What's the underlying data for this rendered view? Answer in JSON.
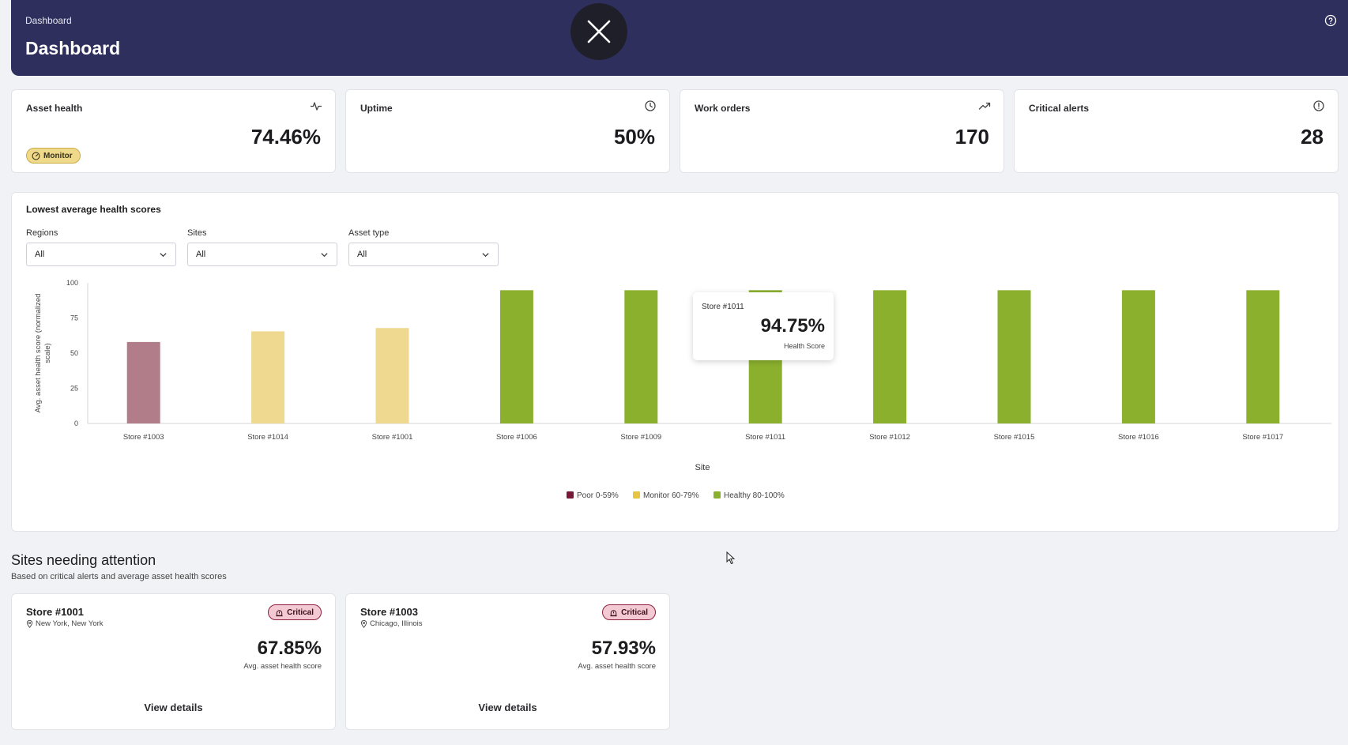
{
  "header": {
    "breadcrumb": "Dashboard",
    "title": "Dashboard",
    "help_icon": "help-circle-icon",
    "close_icon": "close-icon"
  },
  "kpis": [
    {
      "label": "Asset health",
      "value": "74.46%",
      "icon": "pulse-icon",
      "badge": "Monitor"
    },
    {
      "label": "Uptime",
      "value": "50%",
      "icon": "clock-icon"
    },
    {
      "label": "Work orders",
      "value": "170",
      "icon": "trend-up-icon"
    },
    {
      "label": "Critical alerts",
      "value": "28",
      "icon": "alert-circle-icon"
    }
  ],
  "chart_section": {
    "title": "Lowest average health scores",
    "filters": [
      {
        "label": "Regions",
        "value": "All"
      },
      {
        "label": "Sites",
        "value": "All"
      },
      {
        "label": "Asset type",
        "value": "All"
      }
    ]
  },
  "chart_data": {
    "type": "bar",
    "categories": [
      "Store #1003",
      "Store #1014",
      "Store #1001",
      "Store #1006",
      "Store #1009",
      "Store #1011",
      "Store #1012",
      "Store #1015",
      "Store #1016",
      "Store #1017"
    ],
    "values": [
      57.93,
      65.5,
      67.85,
      94.75,
      94.75,
      94.75,
      94.75,
      94.75,
      94.75,
      94.75
    ],
    "bar_colors": [
      "#b17d88",
      "#efd890",
      "#efd890",
      "#8bb02e",
      "#8bb02e",
      "#8bb02e",
      "#8bb02e",
      "#8bb02e",
      "#8bb02e",
      "#8bb02e"
    ],
    "xlabel": "Site",
    "ylabel": "Avg. asset health score (normalized scale)",
    "ylim": [
      0,
      100
    ],
    "yticks": [
      0,
      25,
      50,
      75,
      100
    ],
    "grid": false,
    "legend": [
      {
        "label": "Poor 0-59%",
        "color": "#7a1838"
      },
      {
        "label": "Monitor 60-79%",
        "color": "#e6c544"
      },
      {
        "label": "Healthy 80-100%",
        "color": "#8bb02e"
      }
    ],
    "legend_position": "bottom",
    "tooltip": {
      "site": "Store #1011",
      "value": "94.75%",
      "label": "Health Score"
    }
  },
  "attention": {
    "title": "Sites needing attention",
    "subtitle": "Based on critical alerts and average asset health scores",
    "sites": [
      {
        "name": "Store #1001",
        "location": "New York, New York",
        "badge": "Critical",
        "score": "67.85%",
        "score_label": "Avg. asset health score",
        "action": "View details"
      },
      {
        "name": "Store #1003",
        "location": "Chicago, Illinois",
        "badge": "Critical",
        "score": "57.93%",
        "score_label": "Avg. asset health score",
        "action": "View details"
      }
    ]
  }
}
